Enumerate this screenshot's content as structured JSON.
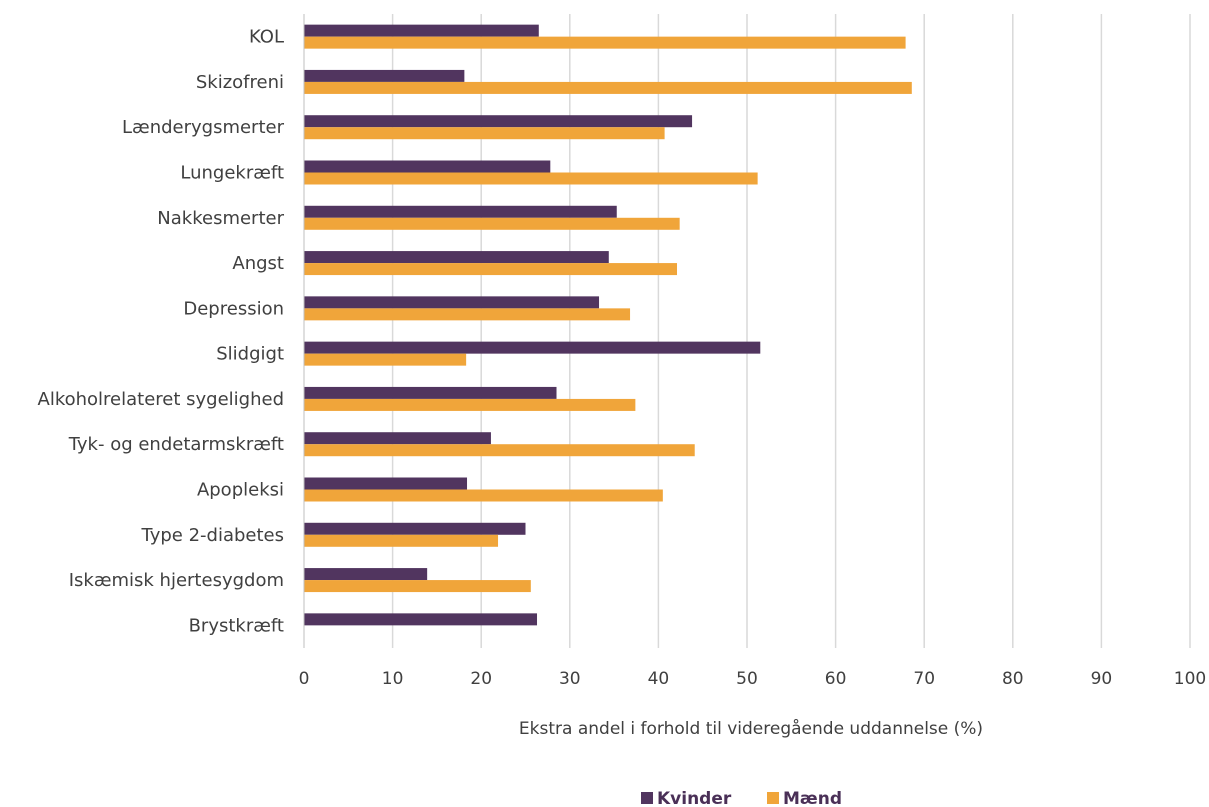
{
  "chart_data": {
    "type": "bar",
    "orientation": "horizontal",
    "categories": [
      "KOL",
      "Skizofreni",
      "Lænderygsmerter",
      "Lungekræft",
      "Nakkesmerter",
      "Angst",
      "Depression",
      "Slidgigt",
      "Alkoholrelateret sygelighed",
      "Tyk- og endetarmskræft",
      "Apopleksi",
      "Type 2-diabetes",
      "Iskæmisk hjertesygdom",
      "Brystkræft"
    ],
    "series": [
      {
        "name": "Kvinder",
        "color": "#51355f",
        "values": [
          26.5,
          18.1,
          43.8,
          27.8,
          35.3,
          34.4,
          33.3,
          51.5,
          28.5,
          21.1,
          18.4,
          25.0,
          13.9,
          26.3
        ]
      },
      {
        "name": "Mænd",
        "color": "#f0a53a",
        "values": [
          67.9,
          68.6,
          40.7,
          51.2,
          42.4,
          42.1,
          36.8,
          18.3,
          37.4,
          44.1,
          40.5,
          21.9,
          25.6,
          null
        ]
      }
    ],
    "xlabel": "Ekstra andel i forhold til videregående uddannelse (%)",
    "ylabel": "",
    "xlim": [
      0,
      100
    ],
    "xticks": [
      "0",
      "10",
      "20",
      "30",
      "40",
      "50",
      "60",
      "70",
      "80",
      "90",
      "100"
    ],
    "grid": "vertical",
    "legend_position": "bottom"
  }
}
